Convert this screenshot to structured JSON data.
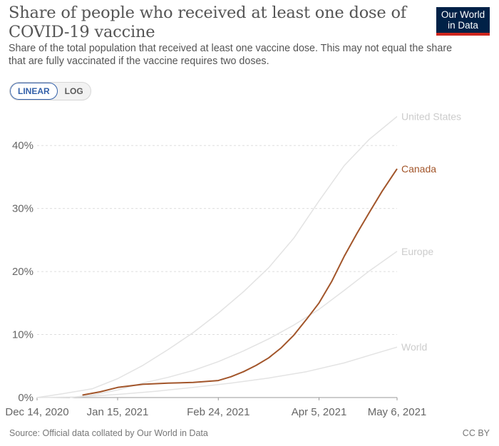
{
  "header": {
    "title": "Share of people who received at least one dose of COVID-19 vaccine",
    "subtitle": "Share of the total population that received at least one vaccine dose. This may not equal the share that are fully vaccinated if the vaccine requires two doses.",
    "logo_line1": "Our World",
    "logo_line2": "in Data"
  },
  "controls": {
    "linear_label": "LINEAR",
    "log_label": "LOG",
    "selected": "LINEAR"
  },
  "footer": {
    "source": "Source: Official data collated by Our World in Data",
    "license": "CC BY"
  },
  "colors": {
    "highlight": "#a2552a",
    "muted": "#e3e3e3",
    "muted_label": "#cccccc",
    "grid": "#dddddd"
  },
  "chart_data": {
    "type": "line",
    "title": "Share of people who received at least one dose of COVID-19 vaccine",
    "xlabel": "",
    "ylabel": "",
    "x_ticks": [
      "Dec 14, 2020",
      "Jan 15, 2021",
      "Feb 24, 2021",
      "Apr 5, 2021",
      "May 6, 2021"
    ],
    "y_ticks": [
      "0%",
      "10%",
      "20%",
      "30%",
      "40%"
    ],
    "ylim": [
      0,
      45
    ],
    "xlim": [
      "2020-12-14",
      "2021-05-06"
    ],
    "grid": true,
    "series": [
      {
        "name": "United States",
        "highlight": false,
        "points": [
          [
            "2020-12-14",
            0
          ],
          [
            "2020-12-24",
            0.6
          ],
          [
            "2021-01-05",
            1.4
          ],
          [
            "2021-01-15",
            3.0
          ],
          [
            "2021-01-25",
            5.1
          ],
          [
            "2021-02-04",
            7.6
          ],
          [
            "2021-02-14",
            10.3
          ],
          [
            "2021-02-24",
            13.4
          ],
          [
            "2021-03-06",
            16.8
          ],
          [
            "2021-03-16",
            20.6
          ],
          [
            "2021-03-26",
            25.3
          ],
          [
            "2021-04-05",
            31.2
          ],
          [
            "2021-04-15",
            36.8
          ],
          [
            "2021-04-25",
            41.0
          ],
          [
            "2021-05-06",
            44.6
          ]
        ]
      },
      {
        "name": "Canada",
        "highlight": true,
        "points": [
          [
            "2021-01-01",
            0.4
          ],
          [
            "2021-01-08",
            0.9
          ],
          [
            "2021-01-15",
            1.6
          ],
          [
            "2021-01-25",
            2.1
          ],
          [
            "2021-02-04",
            2.3
          ],
          [
            "2021-02-14",
            2.4
          ],
          [
            "2021-02-24",
            2.7
          ],
          [
            "2021-03-01",
            3.3
          ],
          [
            "2021-03-06",
            4.1
          ],
          [
            "2021-03-11",
            5.1
          ],
          [
            "2021-03-16",
            6.3
          ],
          [
            "2021-03-21",
            7.9
          ],
          [
            "2021-03-26",
            9.9
          ],
          [
            "2021-03-31",
            12.4
          ],
          [
            "2021-04-05",
            15.0
          ],
          [
            "2021-04-10",
            18.4
          ],
          [
            "2021-04-15",
            22.4
          ],
          [
            "2021-04-20",
            26.0
          ],
          [
            "2021-04-25",
            29.4
          ],
          [
            "2021-04-30",
            32.7
          ],
          [
            "2021-05-06",
            36.3
          ]
        ]
      },
      {
        "name": "Europe",
        "highlight": false,
        "points": [
          [
            "2020-12-27",
            0
          ],
          [
            "2021-01-05",
            0.4
          ],
          [
            "2021-01-15",
            1.2
          ],
          [
            "2021-01-25",
            2.3
          ],
          [
            "2021-02-04",
            3.2
          ],
          [
            "2021-02-14",
            4.3
          ],
          [
            "2021-02-24",
            5.7
          ],
          [
            "2021-03-06",
            7.4
          ],
          [
            "2021-03-16",
            9.3
          ],
          [
            "2021-03-26",
            11.5
          ],
          [
            "2021-04-05",
            14.0
          ],
          [
            "2021-04-15",
            17.0
          ],
          [
            "2021-04-25",
            20.1
          ],
          [
            "2021-05-06",
            23.2
          ]
        ]
      },
      {
        "name": "World",
        "highlight": false,
        "points": [
          [
            "2020-12-14",
            0
          ],
          [
            "2020-12-31",
            0.1
          ],
          [
            "2021-01-15",
            0.5
          ],
          [
            "2021-01-30",
            1.0
          ],
          [
            "2021-02-14",
            1.6
          ],
          [
            "2021-03-01",
            2.3
          ],
          [
            "2021-03-16",
            3.1
          ],
          [
            "2021-03-31",
            4.1
          ],
          [
            "2021-04-15",
            5.5
          ],
          [
            "2021-04-25",
            6.7
          ],
          [
            "2021-05-06",
            8.0
          ]
        ]
      }
    ]
  }
}
